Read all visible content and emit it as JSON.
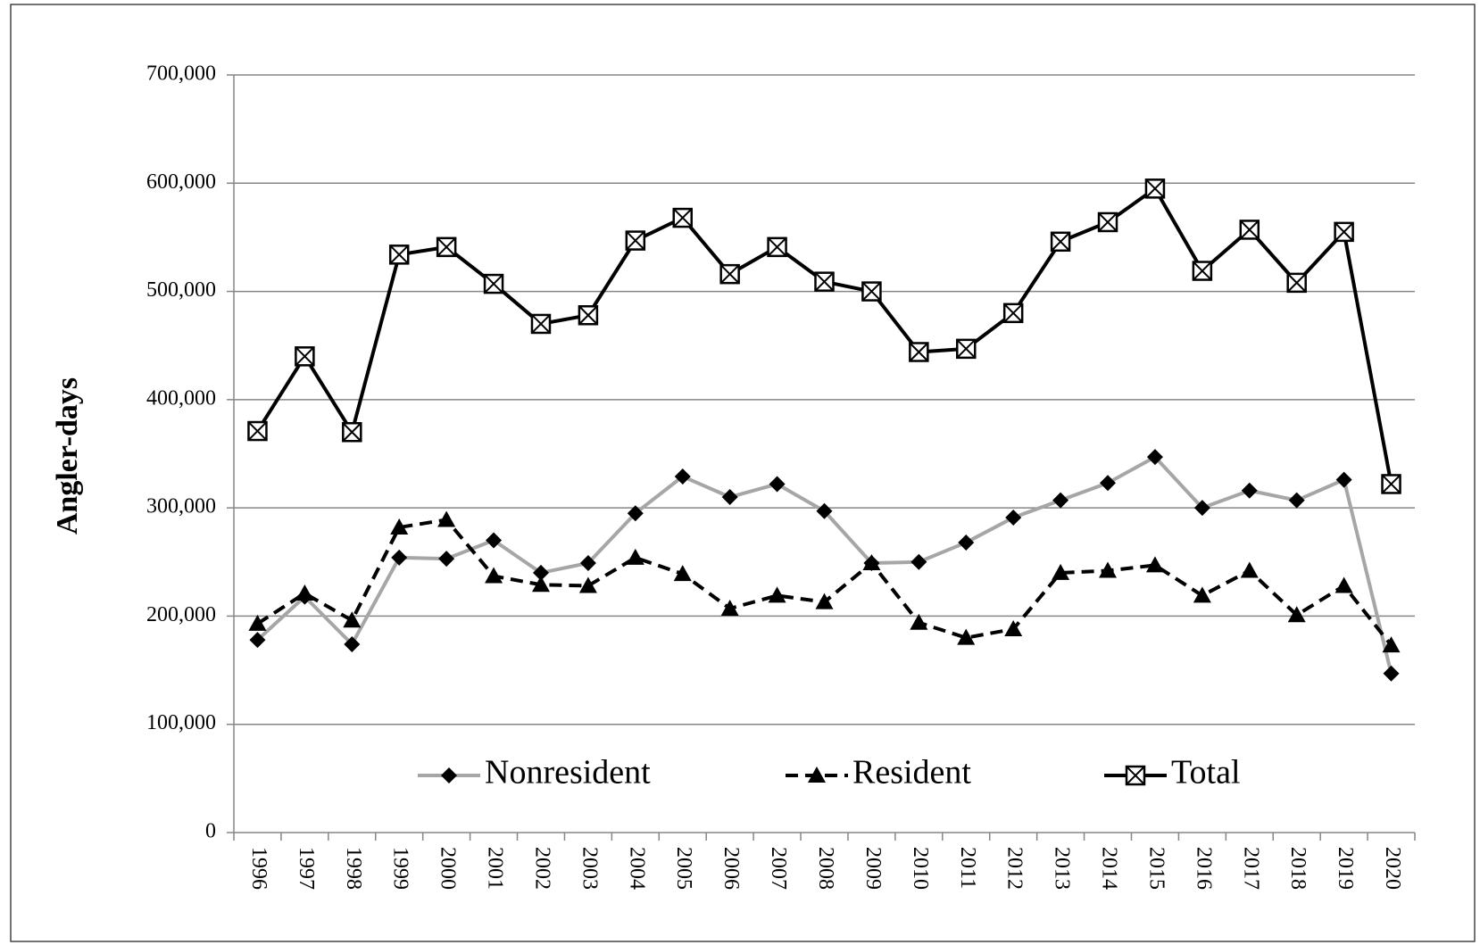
{
  "chart_data": {
    "type": "line",
    "y_label": "Angler-days",
    "categories": [
      "1996",
      "1997",
      "1998",
      "1999",
      "2000",
      "2001",
      "2002",
      "2003",
      "2004",
      "2005",
      "2006",
      "2007",
      "2008",
      "2009",
      "2010",
      "2011",
      "2012",
      "2013",
      "2014",
      "2015",
      "2016",
      "2017",
      "2018",
      "2019",
      "2020"
    ],
    "series": [
      {
        "name": "Nonresident",
        "color": "#a6a6a6",
        "marker": "diamond",
        "dash": false,
        "values": [
          178000,
          218000,
          174000,
          254000,
          253000,
          270000,
          240000,
          249000,
          295000,
          329000,
          310000,
          322000,
          297000,
          249000,
          250000,
          268000,
          291000,
          307000,
          323000,
          347000,
          300000,
          316000,
          307000,
          326000,
          147000
        ]
      },
      {
        "name": "Resident",
        "color": "#000000",
        "marker": "triangle",
        "dash": true,
        "values": [
          193000,
          221000,
          196000,
          282000,
          289000,
          237000,
          229000,
          228000,
          254000,
          239000,
          207000,
          219000,
          213000,
          249000,
          194000,
          180000,
          188000,
          240000,
          242000,
          247000,
          219000,
          242000,
          201000,
          228000,
          173000
        ]
      },
      {
        "name": "Total",
        "color": "#000000",
        "marker": "boxx",
        "dash": false,
        "values": [
          371000,
          440000,
          370000,
          534000,
          541000,
          507000,
          470000,
          478000,
          547000,
          568000,
          516000,
          541000,
          509000,
          500000,
          444000,
          447000,
          480000,
          546000,
          564000,
          595000,
          519000,
          557000,
          508000,
          555000,
          322000
        ]
      }
    ],
    "ylim": [
      0,
      700000
    ],
    "yticks": [
      0,
      {
        "value": 100000,
        "label": "100,000"
      },
      {
        "value": 200000,
        "label": "200,000"
      },
      {
        "value": 300000,
        "label": "300,000"
      },
      {
        "value": 400000,
        "label": "400,000"
      },
      {
        "value": 500000,
        "label": "500,000"
      },
      {
        "value": 600000,
        "label": "600,000"
      },
      {
        "value": 700000,
        "label": "700,000"
      }
    ],
    "grid": true,
    "legend": "bottom"
  }
}
